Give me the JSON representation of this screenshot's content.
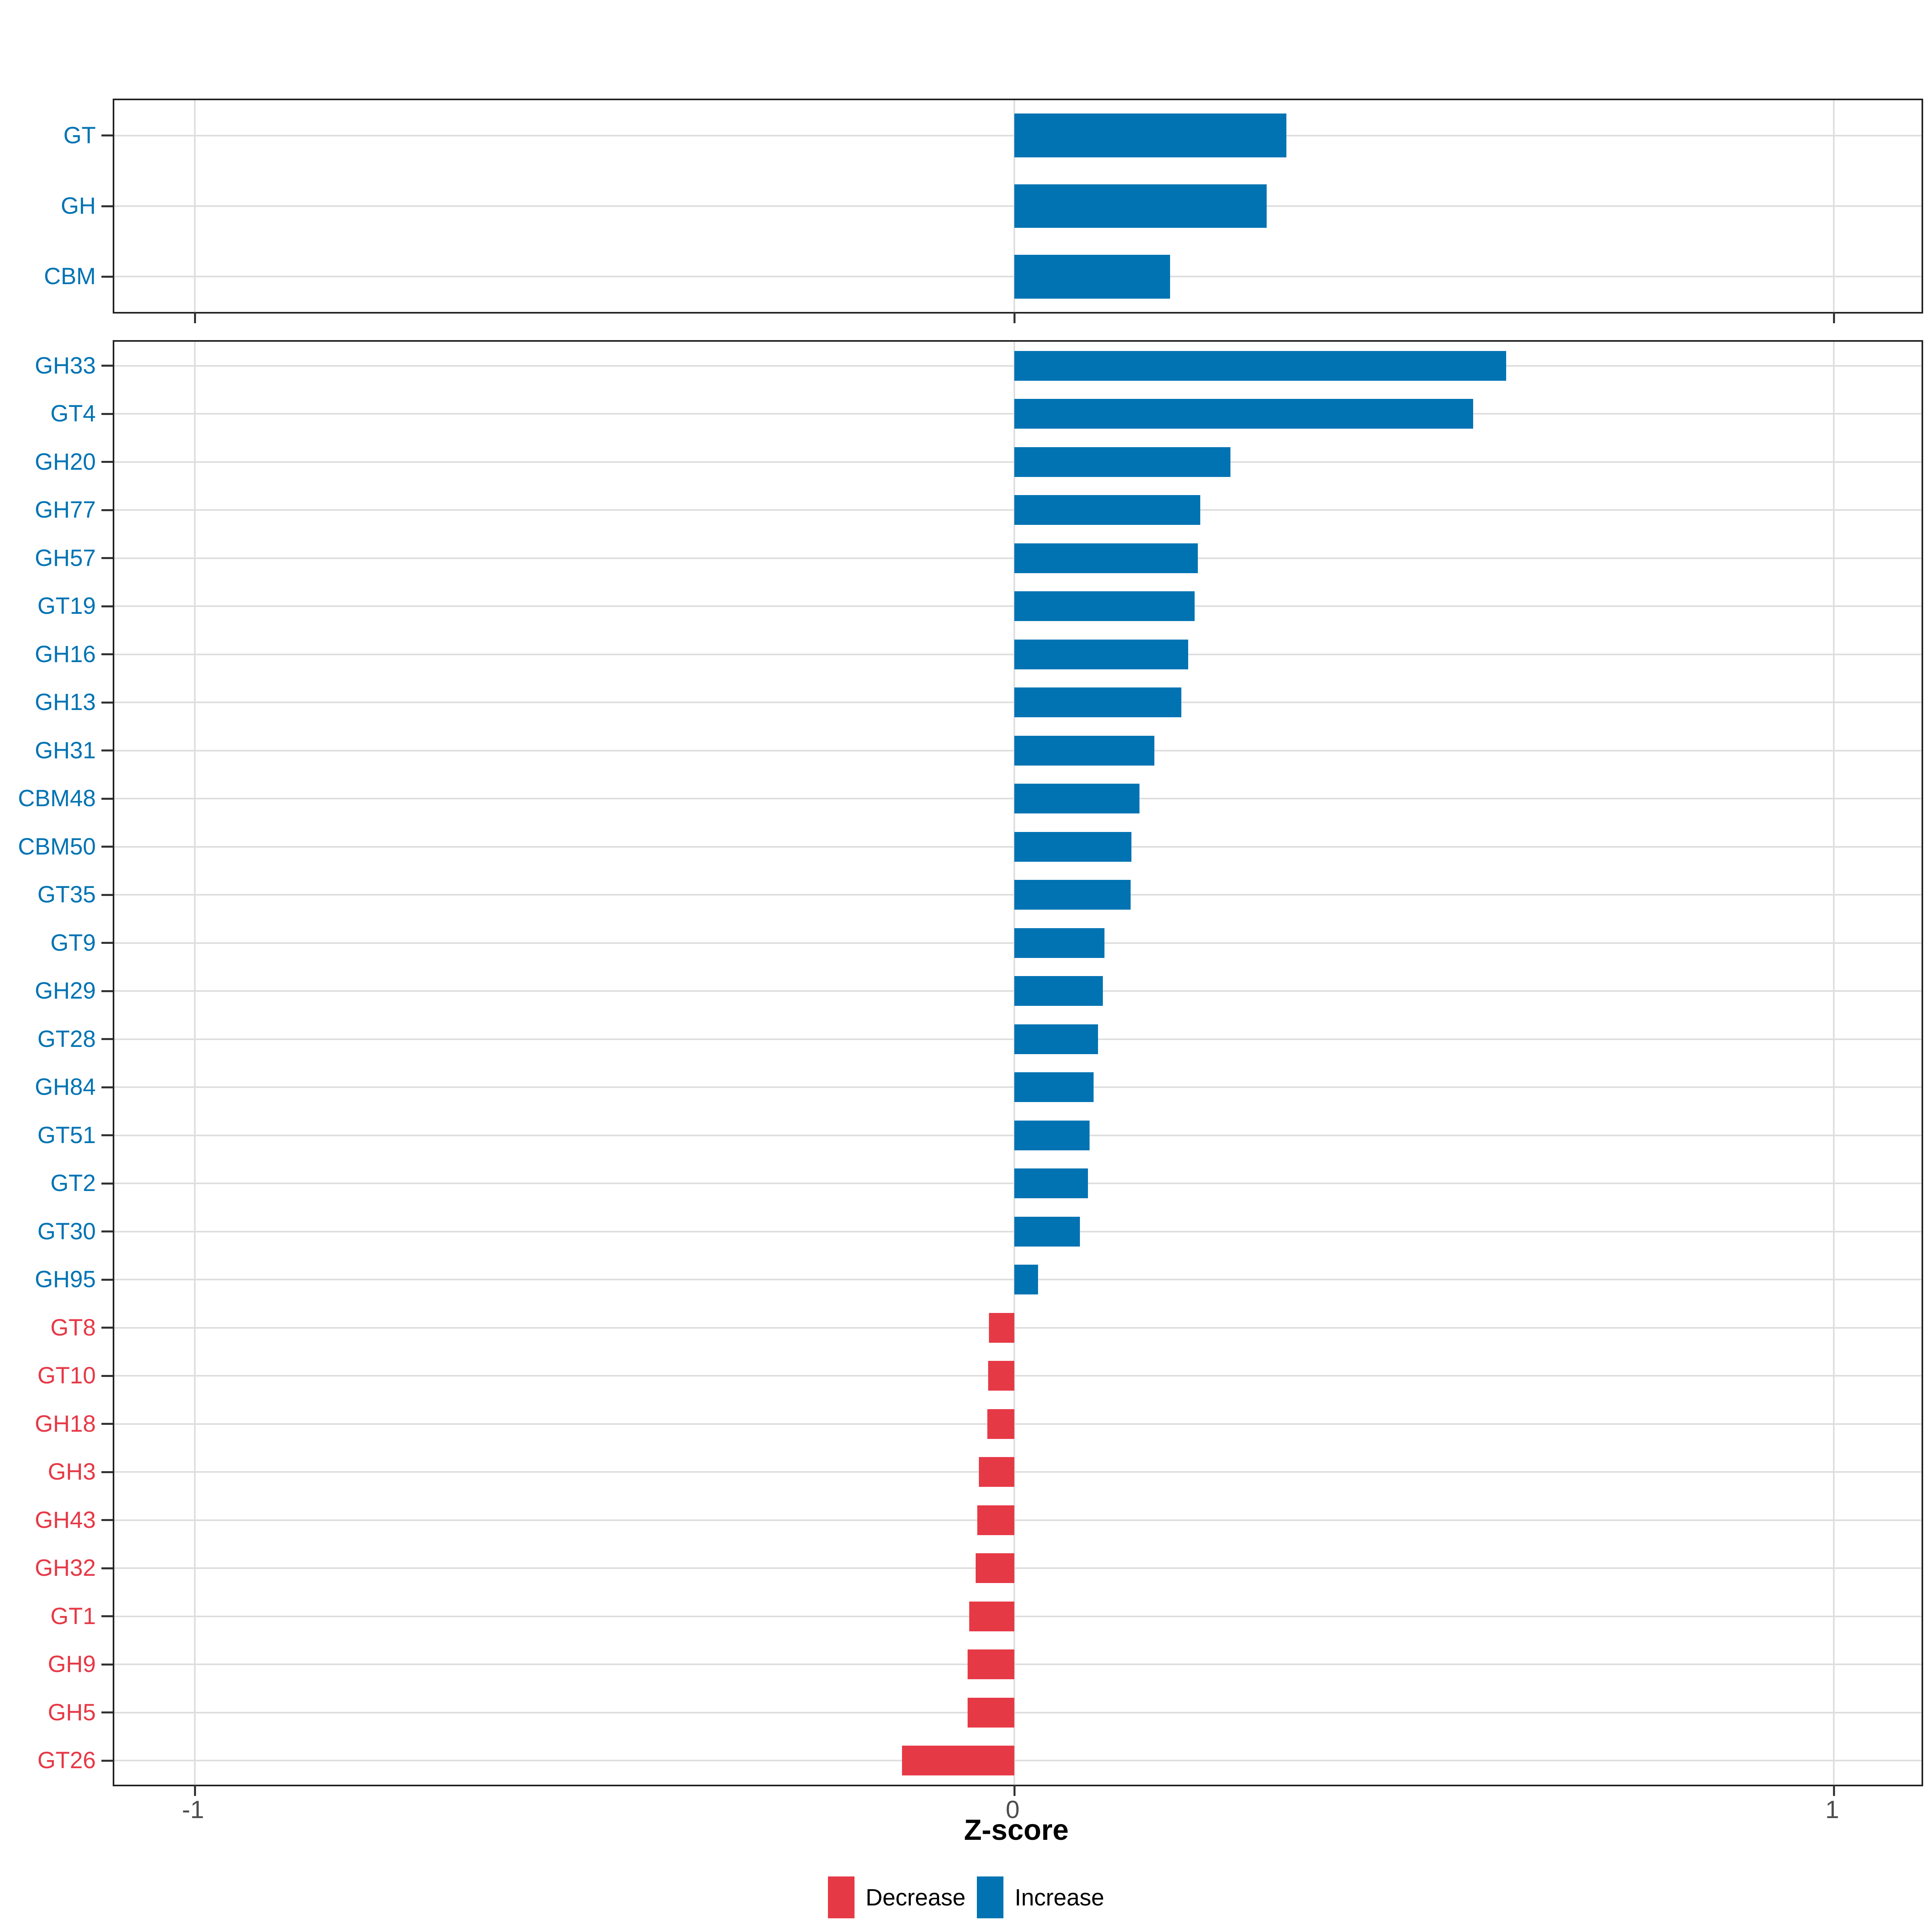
{
  "colors": {
    "increase": "#0173B3",
    "decrease": "#E63946",
    "grid": "#DEDEDE",
    "panel_border": "#222222",
    "axis_tick": "#333333",
    "axis_text": "#4D4D4D"
  },
  "chart_data": {
    "type": "bar",
    "orientation": "horizontal",
    "title": "",
    "xlabel": "Z-score",
    "ylabel": "",
    "xlim": [
      -1.098,
      1.107
    ],
    "x_ticks": [
      -1,
      0,
      1
    ],
    "x_tick_labels": [
      "-1",
      "0",
      "1"
    ],
    "grid": "major-only",
    "legend_position": "bottom",
    "legend": [
      {
        "label": "Decrease",
        "color": "#E63946"
      },
      {
        "label": "Increase",
        "color": "#0173B3"
      }
    ],
    "panels": [
      {
        "name": "cazyme-classes",
        "categories": [
          "GT",
          "GH",
          "CBM"
        ],
        "series": [
          {
            "name": "Z-score",
            "values": [
              0.332,
              0.308,
              0.19
            ]
          }
        ],
        "directions": [
          "Increase",
          "Increase",
          "Increase"
        ]
      },
      {
        "name": "cazyme-families",
        "categories": [
          "GH33",
          "GT4",
          "GH20",
          "GH77",
          "GH57",
          "GT19",
          "GH16",
          "GH13",
          "GH31",
          "CBM48",
          "CBM50",
          "GT35",
          "GT9",
          "GH29",
          "GT28",
          "GH84",
          "GT51",
          "GT2",
          "GT30",
          "GH95",
          "GT8",
          "GT10",
          "GH18",
          "GH3",
          "GH43",
          "GH32",
          "GT1",
          "GH9",
          "GH5",
          "GT26"
        ],
        "series": [
          {
            "name": "Z-score",
            "values": [
              0.6,
              0.56,
              0.264,
              0.227,
              0.224,
              0.22,
              0.212,
              0.204,
              0.171,
              0.153,
              0.143,
              0.142,
              0.11,
              0.108,
              0.102,
              0.097,
              0.092,
              0.09,
              0.08,
              0.029,
              -0.031,
              -0.032,
              -0.033,
              -0.043,
              -0.045,
              -0.047,
              -0.055,
              -0.057,
              -0.057,
              -0.137
            ]
          }
        ],
        "directions": [
          "Increase",
          "Increase",
          "Increase",
          "Increase",
          "Increase",
          "Increase",
          "Increase",
          "Increase",
          "Increase",
          "Increase",
          "Increase",
          "Increase",
          "Increase",
          "Increase",
          "Increase",
          "Increase",
          "Increase",
          "Increase",
          "Increase",
          "Increase",
          "Decrease",
          "Decrease",
          "Decrease",
          "Decrease",
          "Decrease",
          "Decrease",
          "Decrease",
          "Decrease",
          "Decrease",
          "Decrease"
        ]
      }
    ]
  },
  "layout_text": {
    "x_axis_title": "Z-score"
  }
}
